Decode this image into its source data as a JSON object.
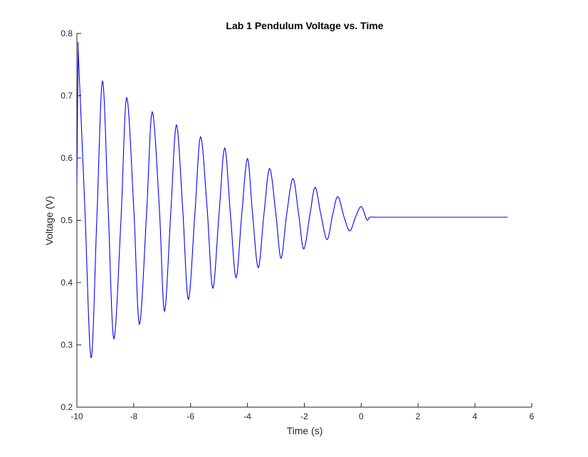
{
  "chart_data": {
    "type": "line",
    "title": "Lab 1 Pendulum Voltage vs. Time",
    "xlabel": "Time (s)",
    "ylabel": "Voltage (V)",
    "xlim": [
      -10,
      6
    ],
    "ylim": [
      0.2,
      0.8
    ],
    "xticks": [
      -10,
      -8,
      -6,
      -4,
      -2,
      0,
      2,
      4,
      6
    ],
    "yticks": [
      0.2,
      0.3,
      0.4,
      0.5,
      0.6,
      0.7,
      0.8
    ],
    "xtick_labels": [
      "-10",
      "-8",
      "-6",
      "-4",
      "-2",
      "0",
      "2",
      "4",
      "6"
    ],
    "ytick_labels": [
      "0.2",
      "0.3",
      "0.4",
      "0.5",
      "0.6",
      "0.7",
      "0.8"
    ],
    "grid": false,
    "line_color": "#0000ff",
    "axis_color": "#262626",
    "series": [
      {
        "x": [
          -10.0,
          -9.96,
          -9.94,
          -9.72,
          -9.5,
          -9.3,
          -9.1,
          -8.9,
          -8.7,
          -8.45,
          -8.25,
          -8.0,
          -7.8,
          -7.55,
          -7.35,
          -7.1,
          -6.92,
          -6.7,
          -6.5,
          -6.28,
          -6.08,
          -5.85,
          -5.65,
          -5.42,
          -5.22,
          -5.0,
          -4.8,
          -4.6,
          -4.4,
          -4.2,
          -4.0,
          -3.82,
          -3.62,
          -3.42,
          -3.22,
          -3.0,
          -2.82,
          -2.62,
          -2.4,
          -2.2,
          -2.02,
          -1.8,
          -1.62,
          -1.42,
          -1.2,
          -1.0,
          -0.82,
          -0.6,
          -0.4,
          -0.2,
          0.0,
          0.2,
          0.3,
          0.5,
          1.0,
          2.0,
          3.0,
          4.0,
          5.0,
          5.15
        ],
        "y": [
          0.56,
          0.76,
          0.757,
          0.52,
          0.279,
          0.5,
          0.724,
          0.52,
          0.31,
          0.5,
          0.697,
          0.52,
          0.333,
          0.51,
          0.674,
          0.52,
          0.354,
          0.51,
          0.653,
          0.52,
          0.373,
          0.51,
          0.634,
          0.52,
          0.391,
          0.51,
          0.616,
          0.51,
          0.408,
          0.51,
          0.599,
          0.51,
          0.424,
          0.51,
          0.583,
          0.51,
          0.439,
          0.51,
          0.567,
          0.51,
          0.454,
          0.51,
          0.553,
          0.51,
          0.469,
          0.51,
          0.538,
          0.505,
          0.483,
          0.505,
          0.522,
          0.501,
          0.505,
          0.505,
          0.505,
          0.505,
          0.505,
          0.505,
          0.505,
          0.505
        ]
      }
    ]
  }
}
